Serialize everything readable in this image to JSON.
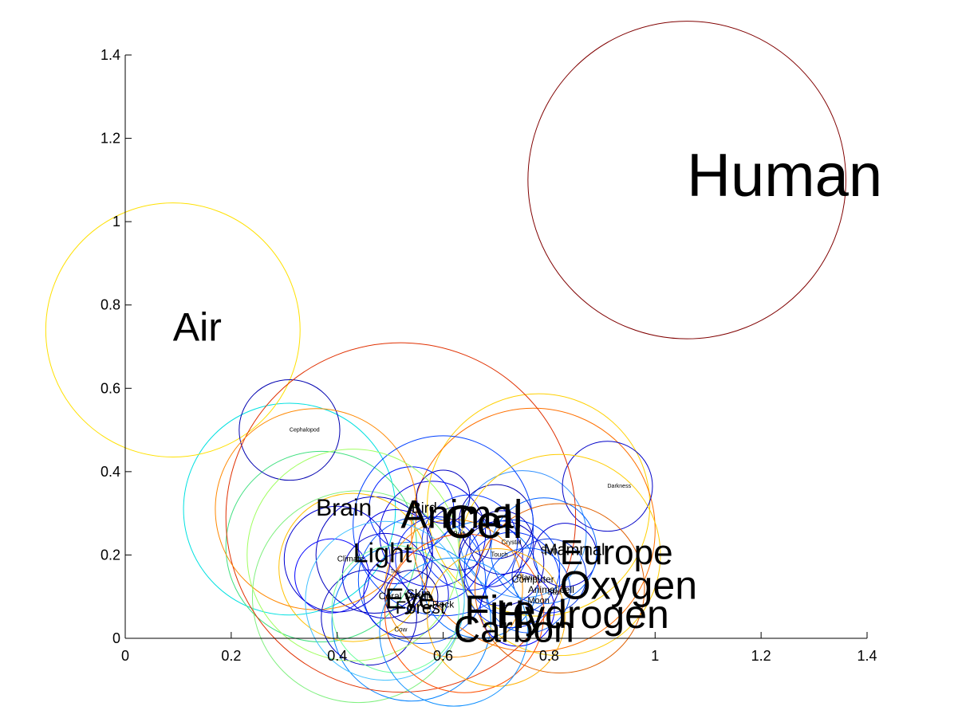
{
  "chart_data": {
    "type": "scatter",
    "title": "",
    "xlabel": "",
    "ylabel": "",
    "xlim": [
      0,
      1.4
    ],
    "ylim": [
      0,
      1.4
    ],
    "xticks": [
      "0",
      "0.2",
      "0.4",
      "0.6",
      "0.8",
      "1",
      "1.2",
      "1.4"
    ],
    "yticks": [
      "0",
      "0.2",
      "0.4",
      "0.6",
      "0.8",
      "1",
      "1.2",
      "1.4"
    ],
    "grid": false,
    "legend": "none",
    "labeled_points": [
      {
        "label": "Human",
        "x": 1.06,
        "y": 1.1,
        "r": 0.3,
        "color": "#800000",
        "font": 76
      },
      {
        "label": "Air",
        "x": 0.09,
        "y": 0.74,
        "r": 0.24,
        "color": "#ffe000",
        "font": 50
      },
      {
        "label": "Cephalopod",
        "x": 0.31,
        "y": 0.5,
        "r": 0.095,
        "color": "#0000b0",
        "font": 7
      },
      {
        "label": "Darkness",
        "x": 0.91,
        "y": 0.365,
        "r": 0.085,
        "color": "#0000c8",
        "font": 7
      },
      {
        "label": "Animal",
        "x": 0.52,
        "y": 0.29,
        "r": 0.33,
        "color": "#e03000",
        "font": 50
      },
      {
        "label": "Brain",
        "x": 0.36,
        "y": 0.31,
        "r": 0.19,
        "color": "#ff8800",
        "font": 30
      },
      {
        "label": "Bird",
        "x": 0.54,
        "y": 0.31,
        "r": 0.08,
        "color": "#0020ff",
        "font": 18
      },
      {
        "label": "Cell",
        "x": 0.6,
        "y": 0.27,
        "r": 0.17,
        "color": "#0040ff",
        "font": 58
      },
      {
        "label": "Light",
        "x": 0.43,
        "y": 0.2,
        "r": 0.2,
        "color": "#a0ff60",
        "font": 34
      },
      {
        "label": "Climate",
        "x": 0.4,
        "y": 0.19,
        "r": 0.1,
        "color": "#0000d0",
        "font": 10
      },
      {
        "label": "Europe",
        "x": 0.82,
        "y": 0.2,
        "r": 0.19,
        "color": "#ffcc00",
        "font": 44
      },
      {
        "label": "Mammal",
        "x": 0.79,
        "y": 0.21,
        "r": 0.1,
        "color": "#0060ff",
        "font": 20
      },
      {
        "label": "Crystal",
        "x": 0.71,
        "y": 0.23,
        "r": 0.06,
        "color": "#0000c0",
        "font": 8
      },
      {
        "label": "Touch",
        "x": 0.69,
        "y": 0.2,
        "r": 0.06,
        "color": "#0000d0",
        "font": 8
      },
      {
        "label": "Oxygen",
        "x": 0.82,
        "y": 0.12,
        "r": 0.16,
        "color": "#e06000",
        "font": 50
      },
      {
        "label": "Eye",
        "x": 0.49,
        "y": 0.09,
        "r": 0.15,
        "color": "#40c0ff",
        "font": 36
      },
      {
        "label": "Skin",
        "x": 0.53,
        "y": 0.105,
        "r": 0.08,
        "color": "#0010e0",
        "font": 16
      },
      {
        "label": "Forest",
        "x": 0.51,
        "y": 0.07,
        "r": 0.12,
        "color": "#70ffa0",
        "font": 22
      },
      {
        "label": "Fire",
        "x": 0.64,
        "y": 0.06,
        "r": 0.15,
        "color": "#ff5000",
        "font": 52
      },
      {
        "label": "Hydrogen",
        "x": 0.7,
        "y": 0.05,
        "r": 0.13,
        "color": "#ffb000",
        "font": 50
      },
      {
        "label": "Carbon",
        "x": 0.62,
        "y": 0.015,
        "r": 0.14,
        "color": "#1090ff",
        "font": 46
      },
      {
        "label": "Computer",
        "x": 0.73,
        "y": 0.14,
        "r": 0.09,
        "color": "#0030ff",
        "font": 12
      },
      {
        "label": "Animal cell",
        "x": 0.76,
        "y": 0.115,
        "r": 0.08,
        "color": "#0050ff",
        "font": 12
      }
    ],
    "extra_circles": [
      {
        "x": 0.31,
        "y": 0.31,
        "r": 0.2,
        "color": "#00e0e0"
      },
      {
        "x": 0.37,
        "y": 0.22,
        "r": 0.18,
        "color": "#40e080"
      },
      {
        "x": 0.44,
        "y": 0.1,
        "r": 0.2,
        "color": "#80f080"
      },
      {
        "x": 0.47,
        "y": 0.2,
        "r": 0.11,
        "color": "#0000c0"
      },
      {
        "x": 0.43,
        "y": 0.17,
        "r": 0.14,
        "color": "#ffc000"
      },
      {
        "x": 0.56,
        "y": 0.14,
        "r": 0.12,
        "color": "#0050ff"
      },
      {
        "x": 0.54,
        "y": 0.04,
        "r": 0.15,
        "color": "#0080ff"
      },
      {
        "x": 0.58,
        "y": 0.25,
        "r": 0.1,
        "color": "#0000e0"
      },
      {
        "x": 0.65,
        "y": 0.23,
        "r": 0.09,
        "color": "#0030ff"
      },
      {
        "x": 0.67,
        "y": 0.14,
        "r": 0.11,
        "color": "#0070ff"
      },
      {
        "x": 0.75,
        "y": 0.25,
        "r": 0.12,
        "color": "#3090ff"
      },
      {
        "x": 0.78,
        "y": 0.32,
        "r": 0.21,
        "color": "#ffd000"
      },
      {
        "x": 0.77,
        "y": 0.26,
        "r": 0.23,
        "color": "#ff7000"
      },
      {
        "x": 0.71,
        "y": 0.18,
        "r": 0.08,
        "color": "#0000c0"
      },
      {
        "x": 0.73,
        "y": 0.17,
        "r": 0.09,
        "color": "#0040ff"
      },
      {
        "x": 0.8,
        "y": 0.15,
        "r": 0.07,
        "color": "#0030e0"
      },
      {
        "x": 0.83,
        "y": 0.2,
        "r": 0.06,
        "color": "#0000d0"
      },
      {
        "x": 0.63,
        "y": 0.24,
        "r": 0.06,
        "color": "#0000b0"
      },
      {
        "x": 0.59,
        "y": 0.19,
        "r": 0.08,
        "color": "#0020ff"
      },
      {
        "x": 0.49,
        "y": 0.15,
        "r": 0.08,
        "color": "#0000d0"
      },
      {
        "x": 0.46,
        "y": 0.05,
        "r": 0.09,
        "color": "#0000c0"
      },
      {
        "x": 0.51,
        "y": 0.22,
        "r": 0.07,
        "color": "#0000e0"
      },
      {
        "x": 0.62,
        "y": 0.12,
        "r": 0.13,
        "color": "#ff9000"
      },
      {
        "x": 0.39,
        "y": 0.15,
        "r": 0.07,
        "color": "#0000ff"
      },
      {
        "x": 0.6,
        "y": 0.34,
        "r": 0.05,
        "color": "#0000c0"
      },
      {
        "x": 0.7,
        "y": 0.28,
        "r": 0.07,
        "color": "#0000b0"
      },
      {
        "x": 0.74,
        "y": 0.07,
        "r": 0.07,
        "color": "#0000ff"
      },
      {
        "x": 0.54,
        "y": 0.1,
        "r": 0.05,
        "color": "#0000a0"
      }
    ],
    "small_labels": [
      {
        "label": "Tree",
        "x": 0.51,
        "y": 0.16,
        "font": 6
      },
      {
        "label": "Bud",
        "x": 0.63,
        "y": 0.25,
        "font": 8
      },
      {
        "label": "Cow",
        "x": 0.52,
        "y": 0.02,
        "font": 8
      },
      {
        "label": "Planet",
        "x": 0.76,
        "y": 0.145,
        "font": 10
      },
      {
        "label": "Star",
        "x": 0.81,
        "y": 0.11,
        "font": 10
      },
      {
        "label": "Moon",
        "x": 0.78,
        "y": 0.09,
        "font": 11
      },
      {
        "label": "Sun",
        "x": 0.8,
        "y": 0.21,
        "font": 12
      },
      {
        "label": "Rock",
        "x": 0.6,
        "y": 0.08,
        "font": 12
      },
      {
        "label": "Metal",
        "x": 0.55,
        "y": 0.1,
        "font": 12
      },
      {
        "label": "Coral",
        "x": 0.5,
        "y": 0.1,
        "font": 12
      }
    ]
  }
}
